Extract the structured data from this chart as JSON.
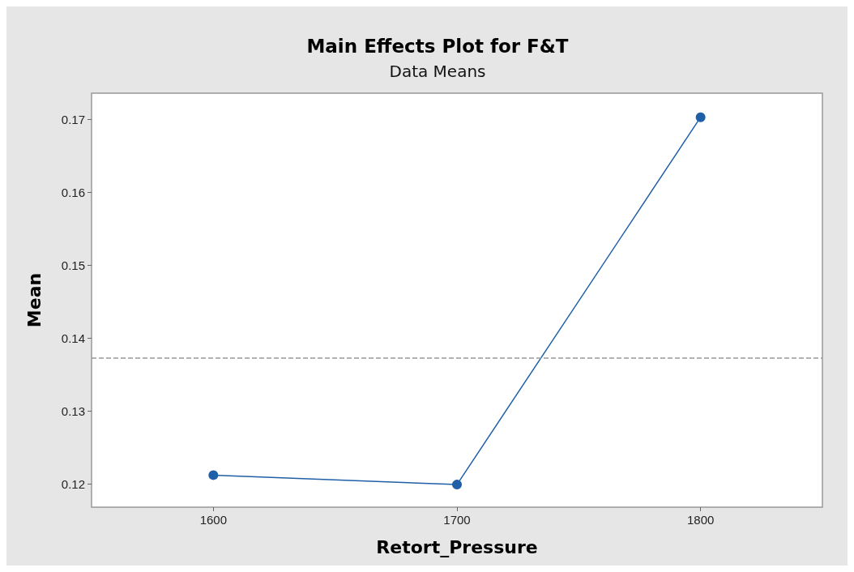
{
  "chart_data": {
    "type": "line",
    "title": "Main Effects Plot for F&T",
    "subtitle": "Data Means",
    "xlabel": "Retort_Pressure",
    "ylabel": "Mean",
    "x": [
      1600,
      1700,
      1800
    ],
    "series": [
      {
        "color": "#1f5fa8",
        "values": [
          0.1212,
          0.1199,
          0.1703
        ]
      }
    ],
    "xlim": [
      1550,
      1850
    ],
    "xticks": [
      1600,
      1700,
      1800
    ],
    "ylim": [
      0.1168,
      0.1736
    ],
    "yticks": [
      0.12,
      0.13,
      0.14,
      0.15,
      0.16,
      0.17
    ],
    "ref_lines": [
      {
        "axis": "y",
        "value": 0.1373,
        "color": "#999999",
        "line_style": "dashed"
      }
    ],
    "marker": "circle",
    "line_style": "solid",
    "grid": false
  }
}
